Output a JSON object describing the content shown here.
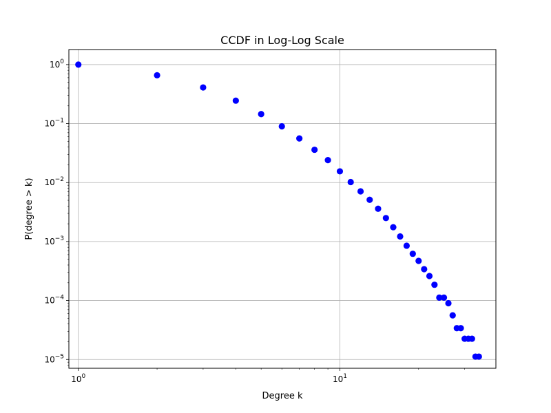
{
  "chart_data": {
    "type": "scatter",
    "title": "CCDF in Log-Log Scale",
    "xlabel": "Degree k",
    "ylabel": "P(degree > k)",
    "xscale": "log",
    "yscale": "log",
    "xlim": [
      0.92,
      39.5
    ],
    "ylim": [
      7.1e-06,
      1.8
    ],
    "grid": true,
    "marker_color": "#0000ff",
    "x_ticks": [
      {
        "value": 1,
        "base": "10",
        "exp": "0"
      },
      {
        "value": 10,
        "base": "10",
        "exp": "1"
      }
    ],
    "y_ticks": [
      {
        "value": 1,
        "base": "10",
        "exp": "0"
      },
      {
        "value": 0.1,
        "base": "10",
        "exp": "−1"
      },
      {
        "value": 0.01,
        "base": "10",
        "exp": "−2"
      },
      {
        "value": 0.001,
        "base": "10",
        "exp": "−3"
      },
      {
        "value": 0.0001,
        "base": "10",
        "exp": "−4"
      },
      {
        "value": 1e-05,
        "base": "10",
        "exp": "−5"
      }
    ],
    "points": [
      {
        "x": 1,
        "y": 1.0
      },
      {
        "x": 2,
        "y": 0.66
      },
      {
        "x": 3,
        "y": 0.41
      },
      {
        "x": 4,
        "y": 0.245
      },
      {
        "x": 5,
        "y": 0.145
      },
      {
        "x": 6,
        "y": 0.09
      },
      {
        "x": 7,
        "y": 0.056
      },
      {
        "x": 8,
        "y": 0.036
      },
      {
        "x": 9,
        "y": 0.024
      },
      {
        "x": 10,
        "y": 0.0155
      },
      {
        "x": 11,
        "y": 0.0102
      },
      {
        "x": 12,
        "y": 0.0071
      },
      {
        "x": 13,
        "y": 0.0051
      },
      {
        "x": 14,
        "y": 0.0036
      },
      {
        "x": 15,
        "y": 0.0025
      },
      {
        "x": 16,
        "y": 0.00175
      },
      {
        "x": 17,
        "y": 0.00122
      },
      {
        "x": 18,
        "y": 0.00085
      },
      {
        "x": 19,
        "y": 0.00062
      },
      {
        "x": 20,
        "y": 0.00047
      },
      {
        "x": 21,
        "y": 0.00034
      },
      {
        "x": 22,
        "y": 0.00026
      },
      {
        "x": 23,
        "y": 0.000185
      },
      {
        "x": 24,
        "y": 0.000112
      },
      {
        "x": 25,
        "y": 0.000112
      },
      {
        "x": 26,
        "y": 9e-05
      },
      {
        "x": 27,
        "y": 5.6e-05
      },
      {
        "x": 28,
        "y": 3.4e-05
      },
      {
        "x": 29,
        "y": 3.4e-05
      },
      {
        "x": 30,
        "y": 2.25e-05
      },
      {
        "x": 31,
        "y": 2.25e-05
      },
      {
        "x": 32,
        "y": 2.25e-05
      },
      {
        "x": 33,
        "y": 1.12e-05
      },
      {
        "x": 34,
        "y": 1.12e-05
      }
    ]
  }
}
